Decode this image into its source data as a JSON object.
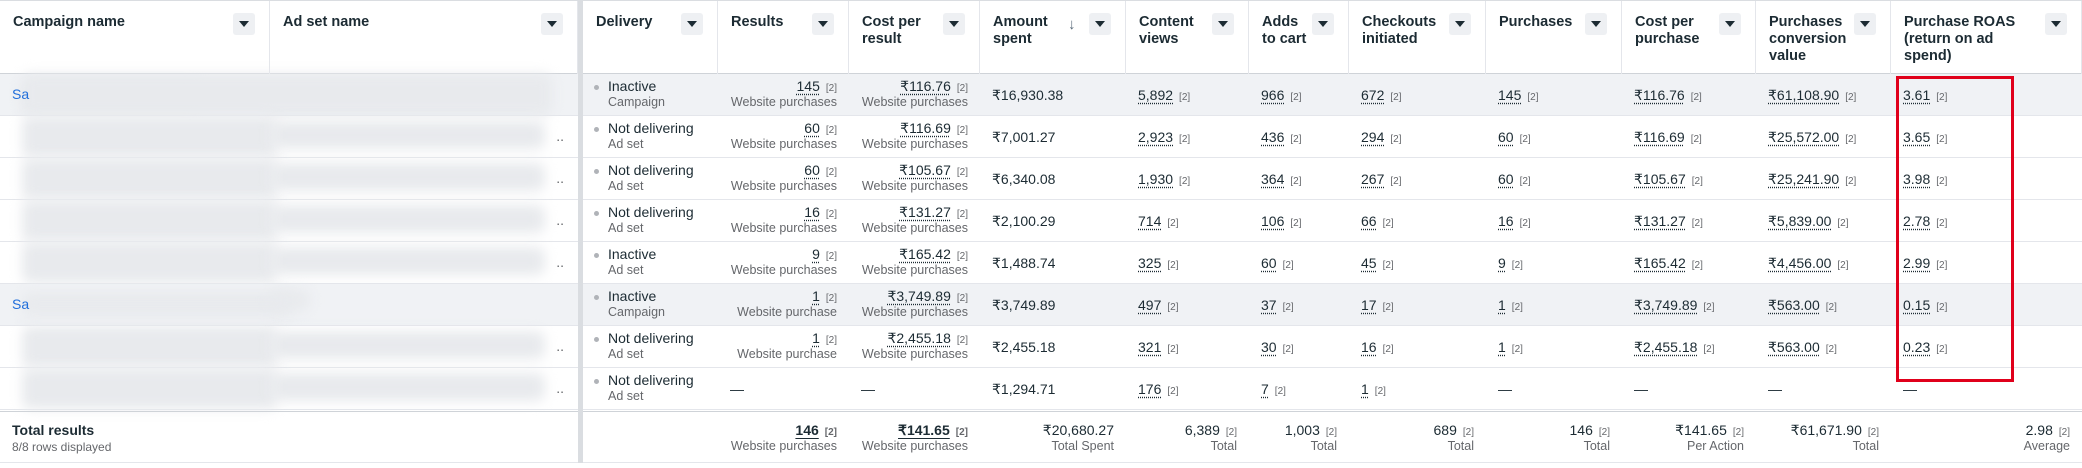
{
  "columns": [
    {
      "key": "campaign",
      "label": "Campaign name"
    },
    {
      "key": "adset",
      "label": "Ad set name"
    },
    {
      "key": "delivery",
      "label": "Delivery"
    },
    {
      "key": "results",
      "label": "Results"
    },
    {
      "key": "cost_per_result",
      "label": "Cost per\nresult"
    },
    {
      "key": "amount_spent",
      "label": "Amount\nspent",
      "sorted": "descending"
    },
    {
      "key": "content_views",
      "label": "Content\nviews"
    },
    {
      "key": "adds_to_cart",
      "label": "Adds\nto cart"
    },
    {
      "key": "checkouts",
      "label": "Checkouts\ninitiated"
    },
    {
      "key": "purchases",
      "label": "Purchases"
    },
    {
      "key": "cost_per_purchase",
      "label": "Cost per\npurchase"
    },
    {
      "key": "conversion_value",
      "label": "Purchases\nconversion\nvalue"
    },
    {
      "key": "roas",
      "label": "Purchase ROAS\n(return on ad\nspend)"
    }
  ],
  "ref_marker": "[2]",
  "rows": [
    {
      "type": "campaign",
      "campaign_prefix": "Sa",
      "delivery": "Inactive",
      "delivery_level": "Campaign",
      "results": "145",
      "results_type": "Website purchases",
      "cost_per_result": "₹116.76",
      "cpr_type": "Website purchases",
      "amount_spent": "₹16,930.38",
      "content_views": "5,892",
      "adds_to_cart": "966",
      "checkouts": "672",
      "purchases": "145",
      "cost_per_purchase": "₹116.76",
      "conversion_value": "₹61,108.90",
      "roas": "3.61"
    },
    {
      "type": "adset",
      "delivery": "Not delivering",
      "delivery_level": "Ad set",
      "results": "60",
      "results_type": "Website purchases",
      "cost_per_result": "₹116.69",
      "cpr_type": "Website purchases",
      "amount_spent": "₹7,001.27",
      "content_views": "2,923",
      "adds_to_cart": "436",
      "checkouts": "294",
      "purchases": "60",
      "cost_per_purchase": "₹116.69",
      "conversion_value": "₹25,572.00",
      "roas": "3.65"
    },
    {
      "type": "adset",
      "delivery": "Not delivering",
      "delivery_level": "Ad set",
      "results": "60",
      "results_type": "Website purchases",
      "cost_per_result": "₹105.67",
      "cpr_type": "Website purchases",
      "amount_spent": "₹6,340.08",
      "content_views": "1,930",
      "adds_to_cart": "364",
      "checkouts": "267",
      "purchases": "60",
      "cost_per_purchase": "₹105.67",
      "conversion_value": "₹25,241.90",
      "roas": "3.98"
    },
    {
      "type": "adset",
      "delivery": "Not delivering",
      "delivery_level": "Ad set",
      "results": "16",
      "results_type": "Website purchases",
      "cost_per_result": "₹131.27",
      "cpr_type": "Website purchases",
      "amount_spent": "₹2,100.29",
      "content_views": "714",
      "adds_to_cart": "106",
      "checkouts": "66",
      "purchases": "16",
      "cost_per_purchase": "₹131.27",
      "conversion_value": "₹5,839.00",
      "roas": "2.78"
    },
    {
      "type": "adset",
      "delivery": "Inactive",
      "delivery_level": "Ad set",
      "results": "9",
      "results_type": "Website purchases",
      "cost_per_result": "₹165.42",
      "cpr_type": "Website purchases",
      "amount_spent": "₹1,488.74",
      "content_views": "325",
      "adds_to_cart": "60",
      "checkouts": "45",
      "purchases": "9",
      "cost_per_purchase": "₹165.42",
      "conversion_value": "₹4,456.00",
      "roas": "2.99"
    },
    {
      "type": "campaign",
      "campaign_prefix": "Sa",
      "delivery": "Inactive",
      "delivery_level": "Campaign",
      "results": "1",
      "results_type": "Website purchase",
      "cost_per_result": "₹3,749.89",
      "cpr_type": "Website purchases",
      "amount_spent": "₹3,749.89",
      "content_views": "497",
      "adds_to_cart": "37",
      "checkouts": "17",
      "purchases": "1",
      "cost_per_purchase": "₹3,749.89",
      "conversion_value": "₹563.00",
      "roas": "0.15"
    },
    {
      "type": "adset",
      "delivery": "Not delivering",
      "delivery_level": "Ad set",
      "results": "1",
      "results_type": "Website purchase",
      "cost_per_result": "₹2,455.18",
      "cpr_type": "Website purchases",
      "amount_spent": "₹2,455.18",
      "content_views": "321",
      "adds_to_cart": "30",
      "checkouts": "16",
      "purchases": "1",
      "cost_per_purchase": "₹2,455.18",
      "conversion_value": "₹563.00",
      "roas": "0.23"
    },
    {
      "type": "adset",
      "delivery": "Not delivering",
      "delivery_level": "Ad set",
      "results": "—",
      "results_type": "",
      "cost_per_result": "—",
      "cpr_type": "",
      "amount_spent": "₹1,294.71",
      "content_views": "176",
      "adds_to_cart": "7",
      "checkouts": "1",
      "purchases": "—",
      "cost_per_purchase": "—",
      "conversion_value": "—",
      "roas": "—"
    }
  ],
  "totals": {
    "title": "Total results",
    "rows_displayed": "8/8 rows displayed",
    "results": "146",
    "results_sub": "Website purchases",
    "cost_per_result": "₹141.65",
    "cost_per_result_sub": "Website purchases",
    "amount_spent": "₹20,680.27",
    "amount_spent_sub": "Total Spent",
    "content_views": "6,389",
    "content_views_sub": "Total",
    "adds_to_cart": "1,003",
    "adds_to_cart_sub": "Total",
    "checkouts": "689",
    "checkouts_sub": "Total",
    "purchases": "146",
    "purchases_sub": "Total",
    "cost_per_purchase": "₹141.65",
    "cost_per_purchase_sub": "Per Action",
    "conversion_value": "₹61,671.90",
    "conversion_value_sub": "Total",
    "roas": "2.98",
    "roas_sub": "Average"
  },
  "highlight_color": "#e0001b",
  "link_color": "#216fdb"
}
